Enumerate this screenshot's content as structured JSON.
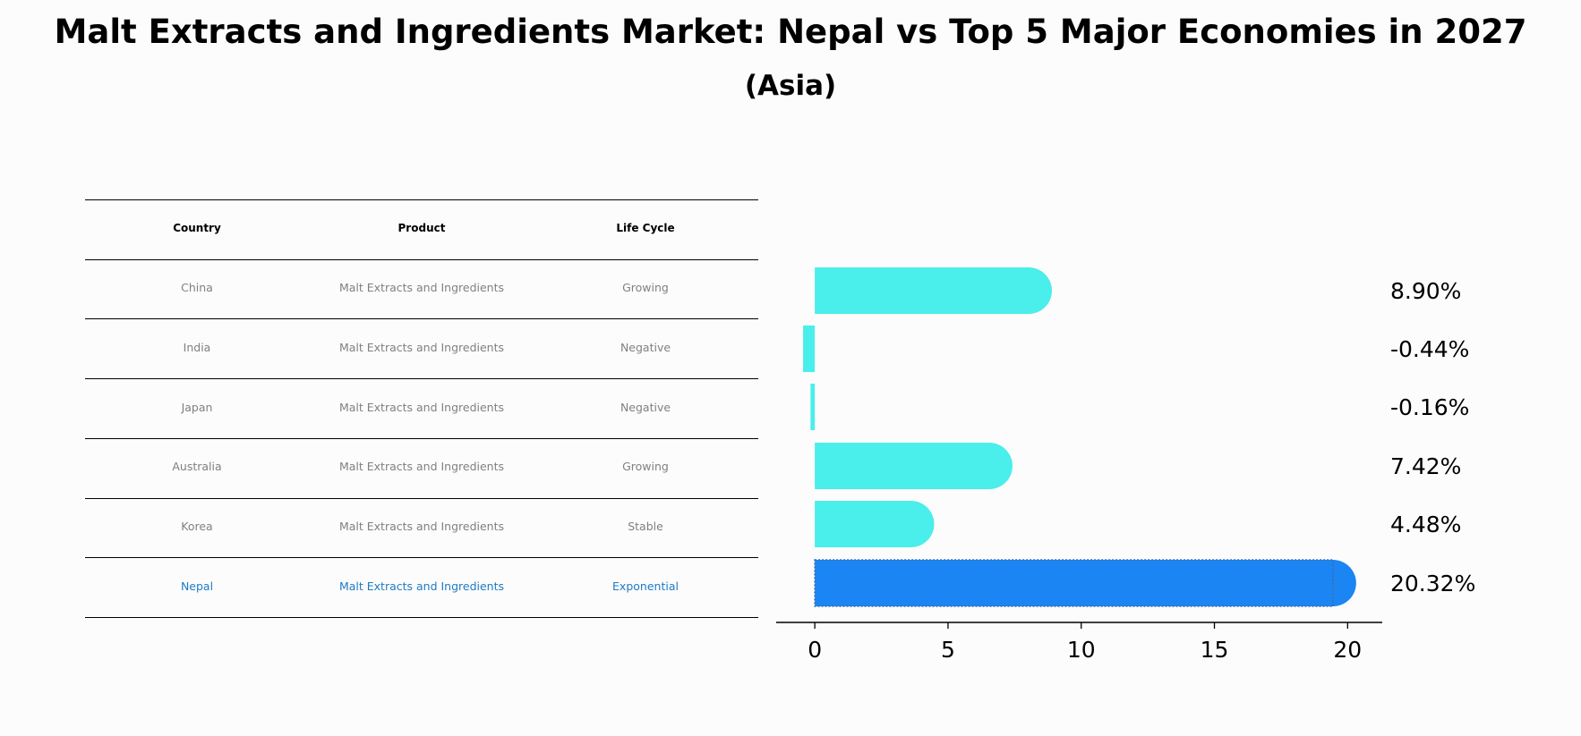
{
  "title": "Malt Extracts and Ingredients Market: Nepal vs Top 5 Major Economies in 2027",
  "subtitle": "(Asia)",
  "table": {
    "headers": [
      "Country",
      "Product",
      "Life Cycle"
    ],
    "rows": [
      [
        "China",
        "Malt Extracts and Ingredients",
        "Growing"
      ],
      [
        "India",
        "Malt Extracts and Ingredients",
        "Negative"
      ],
      [
        "Japan",
        "Malt Extracts and Ingredients",
        "Negative"
      ],
      [
        "Australia",
        "Malt Extracts and Ingredients",
        "Growing"
      ],
      [
        "Korea",
        "Malt Extracts and Ingredients",
        "Stable"
      ],
      [
        "Nepal",
        "Malt Extracts and Ingredients",
        "Exponential"
      ]
    ],
    "highlight_row": 5
  },
  "chart_data": {
    "type": "bar",
    "orientation": "horizontal",
    "categories": [
      "China",
      "India",
      "Japan",
      "Australia",
      "Korea",
      "Nepal"
    ],
    "values": [
      8.9,
      -0.44,
      -0.16,
      7.42,
      4.48,
      20.32
    ],
    "value_labels": [
      "8.90%",
      "-0.44%",
      "-0.16%",
      "7.42%",
      "4.48%",
      "20.32%"
    ],
    "xlim": [
      -1.45,
      21.3
    ],
    "xticks": [
      0,
      5,
      10,
      15,
      20
    ],
    "highlight_index": 5,
    "colors": {
      "default": "#4aeeea",
      "highlight": "#1a85f3"
    },
    "grid": false,
    "title": "",
    "xlabel": "",
    "ylabel": ""
  }
}
